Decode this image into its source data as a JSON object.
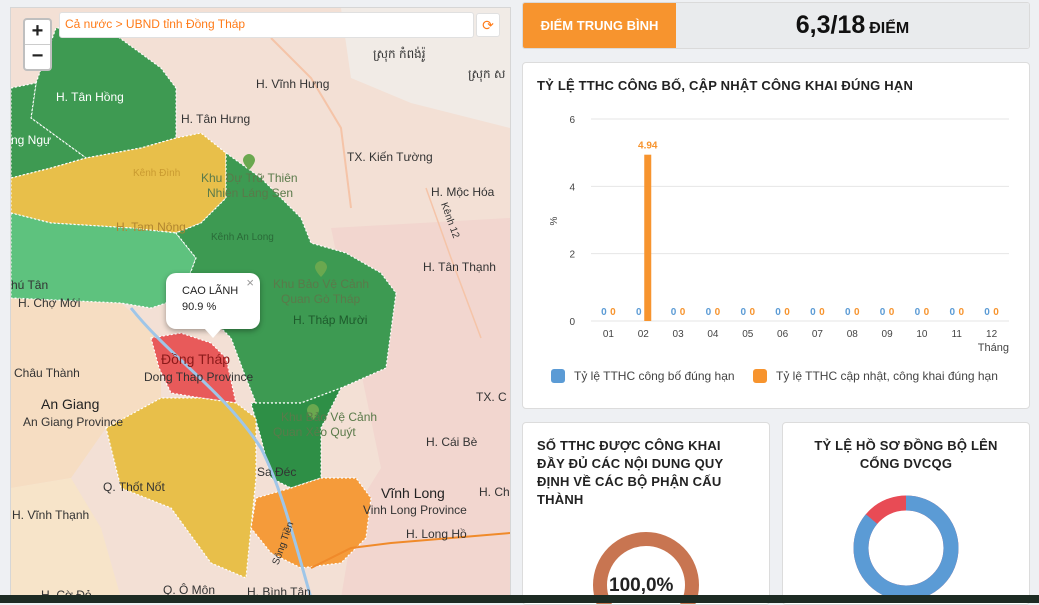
{
  "map": {
    "zoom_in": "+",
    "zoom_out": "−",
    "breadcrumb": "Cả nước > UBND tỉnh Đồng Tháp",
    "popup": {
      "name": "CAO LÃNH",
      "value": "90.9 %",
      "close": "×"
    },
    "labels": [
      "H. Tân Hồng",
      "H. Tân Hưng",
      "H. Vĩnh Hưng",
      "TX. Kiến Tường",
      "Khu Dự Trữ Thiên",
      "Nhiên Láng Sen",
      "H. Mộc Hóa",
      "H. Tam Nông",
      "Kênh An Long",
      "H. Tân Thạnh",
      "Khu Bảo Vệ Cảnh",
      "Quan Gò Tháp",
      "H. Tháp Mười",
      "Đồng Tháp",
      "Dong Thap Province",
      "Châu Thành",
      "An Giang",
      "An Giang Province",
      "Khu Bảo Vệ Cảnh",
      "Quan Xẻo Quýt",
      "H. Cái Bè",
      "Sa Đéc",
      "Q. Thốt Nốt",
      "Vĩnh Long",
      "Vinh Long Province",
      "H. Chợ",
      "H. Vĩnh Thạnh",
      "H. Long Hồ",
      "Q. Ô Môn",
      "H. Bình Tân",
      "H. Cờ Đỏ",
      "TX. C",
      "ស្រុក កំពង់រ៉ូ",
      "ស្រុក ស",
      "H. Chợ Mới",
      "Kênh 12",
      "Sông Tiền",
      "Kênh Đình",
      "ng Ngự",
      "hú Tân"
    ]
  },
  "score": {
    "label": "ĐIỂM TRUNG BÌNH",
    "value": "6,3/18",
    "unit": "ĐIỂM"
  },
  "chart_card": {
    "title": "TỶ LỆ TTHC CÔNG BỐ, CẬP NHẬT CÔNG KHAI ĐÚNG HẠN",
    "legend": [
      {
        "name": "Tỷ lệ TTHC công bố đúng hạn",
        "color": "#5b9bd5"
      },
      {
        "name": "Tỷ lệ TTHC cập nhật, công khai đúng hạn",
        "color": "#f7942e"
      }
    ]
  },
  "chart_data": {
    "type": "bar",
    "categories": [
      "01",
      "02",
      "03",
      "04",
      "05",
      "06",
      "07",
      "08",
      "09",
      "10",
      "11",
      "12"
    ],
    "series": [
      {
        "name": "Tỷ lệ TTHC công bố đúng hạn",
        "values": [
          0,
          0,
          0,
          0,
          0,
          0,
          0,
          0,
          0,
          0,
          0,
          0
        ],
        "color": "#5b9bd5"
      },
      {
        "name": "Tỷ lệ TTHC cập nhật, công khai đúng hạn",
        "values": [
          0,
          4.94,
          0,
          0,
          0,
          0,
          0,
          0,
          0,
          0,
          0,
          0
        ],
        "color": "#f7942e"
      }
    ],
    "ylabel": "%",
    "xlabel": "Tháng",
    "yticks": [
      0,
      2,
      4,
      6
    ],
    "ylim": [
      0,
      6
    ],
    "grid": true,
    "legend_placement": "bottom"
  },
  "card_left": {
    "title": "SỐ TTHC ĐƯỢC CÔNG KHAI ĐẦY ĐỦ CÁC NỘI DUNG QUY ĐỊNH VỀ CÁC BỘ PHẬN CẤU THÀNH",
    "donut_value": "100,0%",
    "percent": 100,
    "color": "#c87551"
  },
  "card_right": {
    "title": "TỶ LỆ HỒ SƠ ĐỒNG BỘ LÊN CỔNG DVCQG",
    "blue_share": 86,
    "colors": [
      "#5b9bd5",
      "#e84b55"
    ]
  }
}
